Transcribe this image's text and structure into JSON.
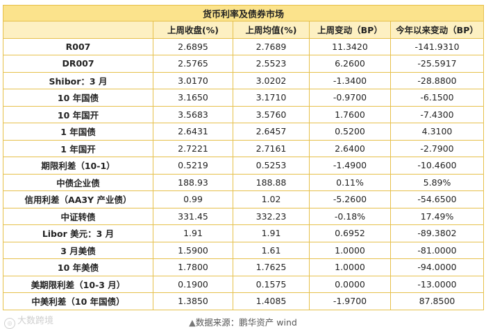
{
  "table": {
    "title": "货币利率及债券市场",
    "headers": [
      "",
      "上周收盘(%)",
      "上周均值(%)",
      "上周变动（BP）",
      "今年以来变动（BP）"
    ],
    "rows": [
      [
        "R007",
        "2.6895",
        "2.7689",
        "11.3420",
        "-141.9310"
      ],
      [
        "DR007",
        "2.5765",
        "2.5523",
        "6.2600",
        "-25.5917"
      ],
      [
        "Shibor：3 月",
        "3.0170",
        "3.0202",
        "-1.3400",
        "-28.8800"
      ],
      [
        "10 年国债",
        "3.1650",
        "3.1710",
        "-0.9700",
        "-6.1500"
      ],
      [
        "10 年国开",
        "3.5683",
        "3.5760",
        "1.7600",
        "-7.4300"
      ],
      [
        "1 年国债",
        "2.6431",
        "2.6457",
        "0.5200",
        "4.3100"
      ],
      [
        "1 年国开",
        "2.7221",
        "2.7161",
        "2.6400",
        "-2.7900"
      ],
      [
        "期限利差（10-1）",
        "0.5219",
        "0.5253",
        "-1.4900",
        "-10.4600"
      ],
      [
        "中债企业债",
        "188.93",
        "188.88",
        "0.11%",
        "5.89%"
      ],
      [
        "信用利差（AA3Y 产业债）",
        "0.99",
        "1.02",
        "-5.2600",
        "-54.6500"
      ],
      [
        "中证转债",
        "331.45",
        "332.23",
        "-0.18%",
        "17.49%"
      ],
      [
        "Libor 美元：3 月",
        "1.91",
        "1.91",
        "0.6952",
        "-89.3802"
      ],
      [
        "3 月美债",
        "1.5900",
        "1.61",
        "1.0000",
        "-81.0000"
      ],
      [
        "10 年美债",
        "1.7800",
        "1.7625",
        "1.0000",
        "-94.0000"
      ],
      [
        "美期限利差（10-3 月）",
        "0.1900",
        "0.1575",
        "0.0000",
        "-13.0000"
      ],
      [
        "中美利差（10 年国债）",
        "1.3850",
        "1.4085",
        "-1.9700",
        "87.8500"
      ]
    ]
  },
  "source": {
    "marker": "▲",
    "text": "数据来源：鹏华资产  wind"
  },
  "watermark": {
    "text": "大数跨境"
  },
  "colors": {
    "title_bg": "#fbe38c",
    "header_bg": "#fdf0c2",
    "border": "#e6c04a"
  }
}
